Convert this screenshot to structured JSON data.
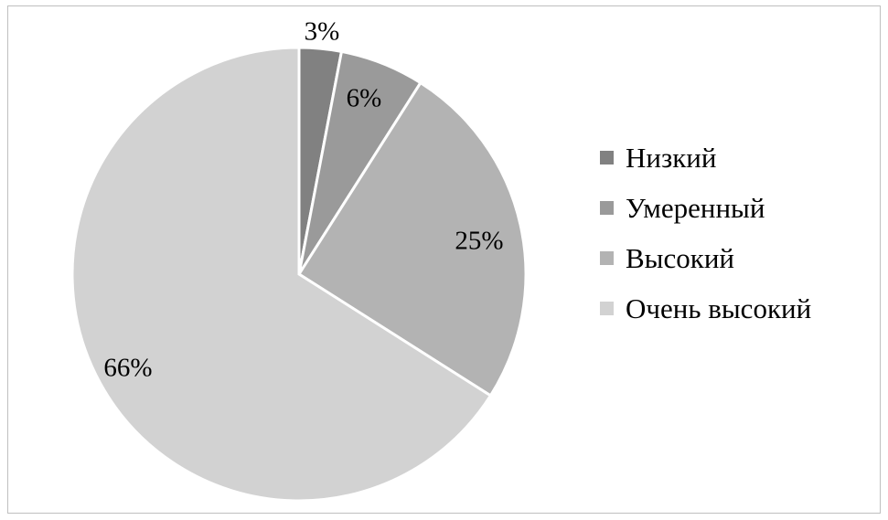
{
  "chart_data": {
    "type": "pie",
    "categories": [
      "Низкий",
      "Умеренный",
      "Высокий",
      "Очень высокий"
    ],
    "values": [
      3,
      6,
      25,
      66
    ],
    "data_labels": [
      "3%",
      "6%",
      "25%",
      "66%"
    ],
    "colors": [
      "#818181",
      "#9a9a9a",
      "#b3b3b3",
      "#d2d2d2"
    ],
    "start_angle": "top, clockwise",
    "legend_position": "right"
  }
}
